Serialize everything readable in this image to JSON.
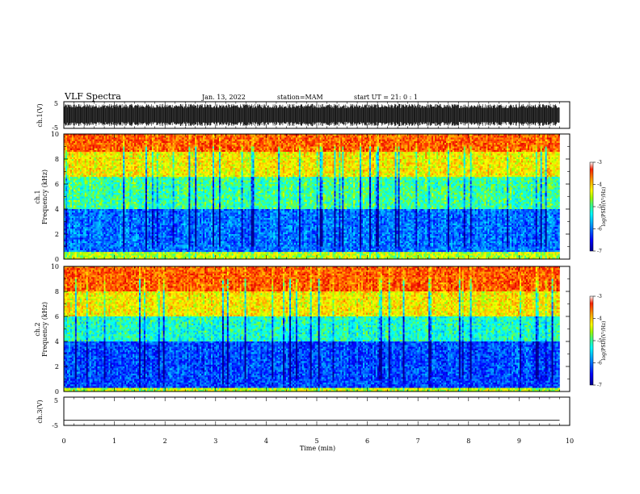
{
  "header": {
    "title": "VLF Spectra",
    "date": "Jan. 13, 2022",
    "station": "station=MAM",
    "start": "start  UT =  21: 0  : 1"
  },
  "chart_data": [
    {
      "type": "line",
      "panel": "ch1-waveform",
      "ylabel": "ch.1(V)",
      "ylim": [
        -5,
        5
      ],
      "yticks": [
        "5",
        "-5"
      ],
      "xlim": [
        0,
        10
      ],
      "data_xmax": 9.8,
      "description_of_signal": "dense noise waveform filling roughly -4 to +4 V"
    },
    {
      "type": "heatmap",
      "panel": "ch1-spectrogram",
      "ylabel": "ch.1\nFrequency (kHz)",
      "ylabel_line1": "ch.1",
      "ylabel_line2": "Frequency (kHz)",
      "ylim": [
        0,
        10
      ],
      "yticks": [
        "0",
        "2",
        "4",
        "6",
        "8",
        "10"
      ],
      "xlim": [
        0,
        10
      ],
      "data_xmax": 9.8,
      "colorbar": {
        "label": "log(PSD)(V²/Hz)",
        "range": [
          -7,
          -3
        ],
        "ticks": [
          "-3",
          "-4",
          "-5",
          "-6",
          "-7"
        ]
      },
      "color_by_frequency_kHz": [
        {
          "freq": [
            0,
            0.5
          ],
          "level": -4.5
        },
        {
          "freq": [
            0.5,
            4
          ],
          "level": -6.0
        },
        {
          "freq": [
            4,
            6.5
          ],
          "level": -5.0
        },
        {
          "freq": [
            6.5,
            8.5
          ],
          "level": -4.2
        },
        {
          "freq": [
            8.5,
            10
          ],
          "level": -3.5
        }
      ]
    },
    {
      "type": "heatmap",
      "panel": "ch2-spectrogram",
      "ylabel_line1": "ch.2",
      "ylabel_line2": "Frequency (kHz)",
      "ylim": [
        0,
        10
      ],
      "yticks": [
        "0",
        "2",
        "4",
        "6",
        "8",
        "10"
      ],
      "xlim": [
        0,
        10
      ],
      "data_xmax": 9.8,
      "colorbar": {
        "label": "log(PSD)(V²/Hz)",
        "range": [
          -7,
          -3
        ],
        "ticks": [
          "-3",
          "-4",
          "-5",
          "-6",
          "-7"
        ]
      },
      "color_by_frequency_kHz": [
        {
          "freq": [
            0,
            0.3
          ],
          "level": -4.5
        },
        {
          "freq": [
            0.3,
            4
          ],
          "level": -6.2
        },
        {
          "freq": [
            4,
            6
          ],
          "level": -5.2
        },
        {
          "freq": [
            6,
            8
          ],
          "level": -4.2
        },
        {
          "freq": [
            8,
            10
          ],
          "level": -3.5
        }
      ]
    },
    {
      "type": "line",
      "panel": "ch3-waveform",
      "ylabel": "ch.3(V)",
      "ylim": [
        -5,
        5
      ],
      "yticks": [
        "5",
        "-5"
      ],
      "xlim": [
        0,
        10
      ],
      "data_xmax": 9.8,
      "constant_value": -3.2
    }
  ],
  "xaxis": {
    "label": "Time (min)",
    "ticks": [
      "0",
      "1",
      "2",
      "3",
      "4",
      "5",
      "6",
      "7",
      "8",
      "9",
      "10"
    ]
  },
  "colors": {
    "colormap": [
      "#00008f",
      "#0000ff",
      "#00a0ff",
      "#00ffff",
      "#40ff80",
      "#a0ff00",
      "#ffff00",
      "#ffa000",
      "#ff4000",
      "#e00000"
    ]
  }
}
